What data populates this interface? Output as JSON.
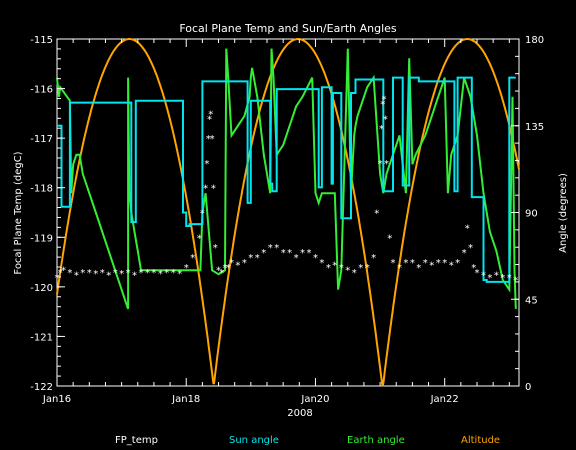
{
  "chart_data": {
    "type": "line",
    "title": "Focal Plane Temp and Sun/Earth Angles",
    "xlabel": "2008",
    "ylabel_left": "Focal Plane Temp (degC)",
    "ylabel_right": "Angle (degrees)",
    "x_range_days": [
      16.0,
      23.15
    ],
    "x_ticks": [
      {
        "day": 16,
        "label": "Jan16"
      },
      {
        "day": 18,
        "label": "Jan18"
      },
      {
        "day": 20,
        "label": "Jan20"
      },
      {
        "day": 22,
        "label": "Jan22"
      }
    ],
    "ylim_left": [
      -122,
      -115
    ],
    "y_ticks_left": [
      "-122",
      "-121",
      "-120",
      "-119",
      "-118",
      "-117",
      "-116",
      "-115"
    ],
    "ylim_right": [
      0,
      180
    ],
    "y_ticks_right": [
      "0",
      "45",
      "90",
      "135",
      "180"
    ],
    "legend_placement": "bottom",
    "series": [
      {
        "name": "FP_temp",
        "axis": "left",
        "style": "star",
        "color": "#ffffff",
        "x": [
          16.0,
          16.05,
          16.1,
          16.2,
          16.3,
          16.4,
          16.5,
          16.6,
          16.7,
          16.8,
          16.9,
          17.0,
          17.1,
          17.2,
          17.3,
          17.4,
          17.5,
          17.6,
          17.7,
          17.8,
          17.9,
          18.0,
          18.1,
          18.2,
          18.25,
          18.3,
          18.32,
          18.34,
          18.36,
          18.38,
          18.4,
          18.42,
          18.45,
          18.5,
          18.55,
          18.6,
          18.65,
          18.7,
          18.8,
          18.9,
          19.0,
          19.1,
          19.2,
          19.3,
          19.4,
          19.5,
          19.6,
          19.7,
          19.8,
          19.9,
          20.0,
          20.1,
          20.2,
          20.3,
          20.4,
          20.5,
          20.6,
          20.7,
          20.8,
          20.9,
          20.95,
          21.0,
          21.02,
          21.04,
          21.06,
          21.08,
          21.1,
          21.15,
          21.2,
          21.3,
          21.4,
          21.5,
          21.6,
          21.7,
          21.8,
          21.9,
          22.0,
          22.1,
          22.2,
          22.3,
          22.35,
          22.4,
          22.45,
          22.5,
          22.6,
          22.7,
          22.8,
          22.9,
          23.0,
          23.1
        ],
        "y": [
          -119.8,
          -119.7,
          -119.65,
          -119.7,
          -119.75,
          -119.7,
          -119.7,
          -119.72,
          -119.7,
          -119.75,
          -119.7,
          -119.72,
          -119.7,
          -119.75,
          -119.7,
          -119.7,
          -119.7,
          -119.72,
          -119.7,
          -119.7,
          -119.72,
          -119.6,
          -119.4,
          -119.0,
          -118.5,
          -118.0,
          -117.5,
          -117.0,
          -116.6,
          -116.5,
          -117.0,
          -118.0,
          -119.2,
          -119.65,
          -119.7,
          -119.6,
          -119.6,
          -119.5,
          -119.55,
          -119.5,
          -119.4,
          -119.4,
          -119.3,
          -119.2,
          -119.2,
          -119.3,
          -119.3,
          -119.4,
          -119.3,
          -119.3,
          -119.4,
          -119.5,
          -119.6,
          -119.55,
          -119.6,
          -119.65,
          -119.7,
          -119.6,
          -119.6,
          -119.4,
          -118.5,
          -117.5,
          -116.8,
          -116.3,
          -116.2,
          -116.6,
          -117.5,
          -119.0,
          -119.5,
          -119.6,
          -119.5,
          -119.5,
          -119.6,
          -119.5,
          -119.55,
          -119.5,
          -119.5,
          -119.55,
          -119.5,
          -119.3,
          -118.8,
          -119.2,
          -119.6,
          -119.7,
          -119.75,
          -119.8,
          -119.75,
          -119.8,
          -119.8,
          -119.85
        ]
      },
      {
        "name": "Sun angle",
        "axis": "right",
        "style": "line",
        "color": "#00e5ee",
        "x": [
          16.0,
          16.07,
          16.07,
          16.2,
          16.2,
          16.3,
          16.3,
          17.15,
          17.15,
          17.22,
          17.22,
          17.95,
          17.95,
          18.0,
          18.0,
          18.05,
          18.05,
          18.25,
          18.25,
          18.42,
          18.42,
          18.95,
          18.95,
          19.0,
          19.0,
          19.3,
          19.3,
          19.33,
          19.33,
          19.4,
          19.4,
          19.6,
          19.6,
          20.05,
          20.05,
          20.1,
          20.1,
          20.25,
          20.25,
          20.27,
          20.27,
          20.4,
          20.4,
          20.55,
          20.55,
          20.62,
          20.62,
          21.05,
          21.05,
          21.2,
          21.2,
          21.35,
          21.35,
          21.45,
          21.45,
          21.6,
          21.6,
          22.15,
          22.15,
          22.2,
          22.2,
          22.42,
          22.42,
          22.6,
          22.6,
          22.65,
          22.65,
          23.0,
          23.0,
          23.1
        ],
        "y": [
          135,
          135,
          93,
          93,
          147,
          147,
          147,
          147,
          85,
          85,
          148,
          148,
          90,
          90,
          83,
          83,
          84,
          84,
          158,
          158,
          158,
          158,
          95,
          95,
          148,
          148,
          105,
          105,
          101,
          101,
          154,
          154,
          154,
          154,
          103,
          103,
          155,
          155,
          105,
          105,
          152,
          152,
          87,
          87,
          152,
          152,
          159,
          159,
          101,
          101,
          160,
          160,
          104,
          104,
          160,
          160,
          158,
          158,
          101,
          101,
          160,
          160,
          98,
          98,
          55,
          55,
          54,
          54,
          160,
          160
        ]
      },
      {
        "name": "Earth angle",
        "axis": "right",
        "style": "line",
        "color": "#33ee33",
        "x": [
          16.0,
          16.03,
          16.05,
          16.2,
          16.22,
          16.25,
          16.3,
          16.35,
          16.4,
          16.6,
          16.8,
          17.0,
          17.05,
          17.1,
          17.1,
          17.12,
          17.15,
          17.2,
          17.25,
          17.3,
          17.4,
          17.6,
          17.8,
          17.95,
          17.98,
          18.0,
          18.02,
          18.2,
          18.22,
          18.25,
          18.3,
          18.4,
          18.5,
          18.6,
          18.62,
          18.65,
          18.7,
          18.8,
          18.9,
          18.98,
          19.0,
          19.02,
          19.1,
          19.2,
          19.3,
          19.32,
          19.35,
          19.4,
          19.5,
          19.6,
          19.7,
          19.8,
          19.95,
          20.0,
          20.05,
          20.1,
          20.3,
          20.35,
          20.4,
          20.5,
          20.55,
          20.6,
          20.62,
          20.65,
          20.7,
          20.8,
          20.9,
          21.0,
          21.05,
          21.1,
          21.2,
          21.3,
          21.4,
          21.45,
          21.5,
          21.55,
          21.7,
          21.8,
          21.9,
          21.95,
          22.0,
          22.05,
          22.1,
          22.2,
          22.3,
          22.35,
          22.4,
          22.5,
          22.6,
          22.7,
          22.8,
          22.9,
          23.0,
          23.05,
          23.08,
          23.1
        ],
        "y": [
          160,
          150,
          155,
          148,
          100,
          115,
          120,
          120,
          110,
          90,
          70,
          50,
          45,
          40,
          160,
          100,
          90,
          80,
          70,
          60,
          60,
          60,
          60,
          60,
          60,
          60,
          60,
          60,
          60,
          90,
          100,
          60,
          58,
          60,
          175,
          160,
          130,
          135,
          140,
          150,
          160,
          165,
          150,
          120,
          100,
          175,
          160,
          120,
          125,
          135,
          145,
          150,
          160,
          100,
          95,
          100,
          100,
          50,
          60,
          175,
          100,
          130,
          135,
          140,
          145,
          155,
          160,
          110,
          100,
          110,
          120,
          130,
          100,
          170,
          115,
          120,
          130,
          140,
          150,
          155,
          160,
          100,
          120,
          130,
          160,
          155,
          150,
          130,
          100,
          80,
          70,
          55,
          50,
          150,
          60,
          40
        ]
      },
      {
        "name": "Altitude",
        "axis": "right",
        "style": "line",
        "color": "#ffa500",
        "apogee_days": [
          17.12,
          19.73,
          22.35
        ],
        "perigee_days": [
          18.42,
          21.04
        ]
      }
    ]
  }
}
